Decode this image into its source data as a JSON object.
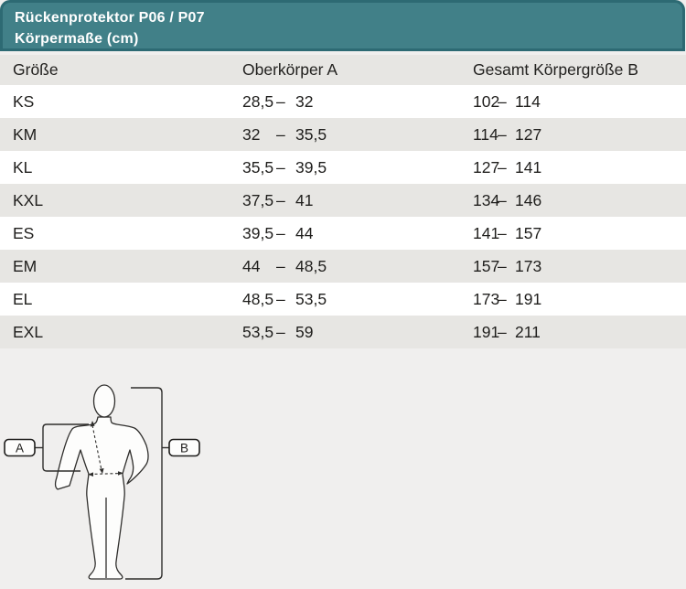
{
  "header": {
    "line1": "Rückenprotektor P06 / P07",
    "line2": "Körpermaße (cm)"
  },
  "table": {
    "columns": [
      "Größe",
      "Oberkörper A",
      "Gesamt Körpergröße B"
    ],
    "range_separator": "–",
    "rows": [
      {
        "size": "KS",
        "upper_from": "28,5",
        "upper_to": "32",
        "height_from": "102",
        "height_to": "114"
      },
      {
        "size": "KM",
        "upper_from": "32",
        "upper_to": "35,5",
        "height_from": "114",
        "height_to": "127"
      },
      {
        "size": "KL",
        "upper_from": "35,5",
        "upper_to": "39,5",
        "height_from": "127",
        "height_to": "141"
      },
      {
        "size": "KXL",
        "upper_from": "37,5",
        "upper_to": "41",
        "height_from": "134",
        "height_to": "146"
      },
      {
        "size": "ES",
        "upper_from": "39,5",
        "upper_to": "44",
        "height_from": "141",
        "height_to": "157"
      },
      {
        "size": "EM",
        "upper_from": "44",
        "upper_to": "48,5",
        "height_from": "157",
        "height_to": "173"
      },
      {
        "size": "EL",
        "upper_from": "48,5",
        "upper_to": "53,5",
        "height_from": "173",
        "height_to": "191"
      },
      {
        "size": "EXL",
        "upper_from": "53,5",
        "upper_to": "59",
        "height_from": "191",
        "height_to": "211"
      }
    ]
  },
  "figure": {
    "label_a": "A",
    "label_b": "B"
  },
  "colors": {
    "teal": "#418088",
    "teal_border": "#2d6a73",
    "row_gray": "#e7e6e3",
    "row_white": "#ffffff",
    "page_bg": "#f0efee",
    "text": "#1f1e1c"
  }
}
